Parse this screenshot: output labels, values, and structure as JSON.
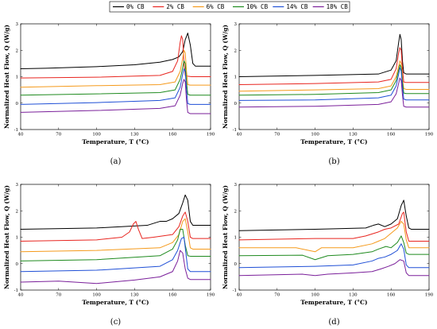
{
  "legend": [
    {
      "label": "0% CB",
      "color": "#000000"
    },
    {
      "label": "2% CB",
      "color": "#e8251f"
    },
    {
      "label": "6% CB",
      "color": "#f59a1b"
    },
    {
      "label": "10% CB",
      "color": "#1e8a1e"
    },
    {
      "label": "14% CB",
      "color": "#1f4fd6"
    },
    {
      "label": "18% CB",
      "color": "#7a1f9a"
    }
  ],
  "chart_data": [
    {
      "type": "line",
      "panel_label": "(a)",
      "xlabel": "Temperature, T (°C)",
      "ylabel": "Normalized Heat Flow, Q (W/g)",
      "xlim": [
        40,
        190
      ],
      "ylim": [
        -1,
        3
      ],
      "xticks": [
        40,
        70,
        100,
        130,
        160,
        190
      ],
      "yticks": [
        -1,
        0,
        1,
        2,
        3
      ],
      "series": [
        {
          "name": "0% CB",
          "x": [
            40,
            60,
            100,
            130,
            150,
            160,
            165,
            168,
            170,
            172,
            174,
            176,
            178,
            190
          ],
          "y": [
            1.3,
            1.32,
            1.38,
            1.45,
            1.55,
            1.65,
            1.75,
            1.95,
            2.4,
            2.65,
            2.2,
            1.5,
            1.4,
            1.4
          ]
        },
        {
          "name": "2% CB",
          "x": [
            40,
            100,
            150,
            160,
            164,
            166,
            167,
            168,
            169,
            170,
            172,
            175,
            190
          ],
          "y": [
            0.95,
            0.98,
            1.05,
            1.2,
            1.6,
            2.3,
            2.55,
            2.4,
            1.5,
            1.05,
            1.02,
            1.0,
            1.0
          ]
        },
        {
          "name": "6% CB",
          "x": [
            40,
            100,
            150,
            162,
            166,
            168,
            169,
            170,
            171,
            172,
            174,
            176,
            190
          ],
          "y": [
            0.6,
            0.66,
            0.7,
            0.8,
            1.2,
            1.7,
            2.0,
            1.9,
            1.2,
            0.7,
            0.68,
            0.68,
            0.68
          ]
        },
        {
          "name": "10% CB",
          "x": [
            40,
            100,
            150,
            162,
            166,
            168,
            169,
            170,
            171,
            172,
            174,
            176,
            190
          ],
          "y": [
            0.3,
            0.35,
            0.4,
            0.5,
            0.9,
            1.35,
            1.6,
            1.5,
            0.8,
            0.33,
            0.3,
            0.3,
            0.3
          ]
        },
        {
          "name": "14% CB",
          "x": [
            40,
            100,
            150,
            162,
            166,
            168,
            169,
            170,
            171,
            172,
            174,
            176,
            190
          ],
          "y": [
            -0.05,
            0.02,
            0.1,
            0.2,
            0.6,
            1.1,
            1.3,
            1.2,
            0.5,
            -0.02,
            -0.05,
            -0.05,
            -0.05
          ]
        },
        {
          "name": "18% CB",
          "x": [
            40,
            100,
            150,
            162,
            166,
            168,
            169,
            170,
            171,
            172,
            174,
            176,
            190
          ],
          "y": [
            -0.35,
            -0.28,
            -0.2,
            -0.1,
            0.3,
            0.75,
            0.9,
            0.8,
            0.1,
            -0.35,
            -0.4,
            -0.4,
            -0.4
          ]
        }
      ]
    },
    {
      "type": "line",
      "panel_label": "(b)",
      "xlabel": "Temperature, T (°C)",
      "ylabel": "Normalized Heat Flow, Q (W/g)",
      "xlim": [
        40,
        190
      ],
      "ylim": [
        -1,
        3
      ],
      "xticks": [
        40,
        70,
        100,
        130,
        160,
        190
      ],
      "yticks": [
        -1,
        0,
        1,
        2,
        3
      ],
      "series": [
        {
          "name": "0% CB",
          "x": [
            40,
            100,
            150,
            160,
            164,
            166,
            167,
            168,
            169,
            170,
            172,
            175,
            190
          ],
          "y": [
            1.0,
            1.05,
            1.1,
            1.25,
            1.6,
            2.3,
            2.6,
            2.4,
            1.6,
            1.15,
            1.1,
            1.1,
            1.1
          ]
        },
        {
          "name": "2% CB",
          "x": [
            40,
            100,
            150,
            160,
            164,
            166,
            167,
            168,
            169,
            170,
            172,
            175,
            190
          ],
          "y": [
            0.7,
            0.74,
            0.8,
            0.9,
            1.3,
            1.9,
            2.1,
            2.0,
            1.3,
            0.8,
            0.78,
            0.78,
            0.78
          ]
        },
        {
          "name": "6% CB",
          "x": [
            40,
            100,
            150,
            160,
            164,
            166,
            167,
            168,
            169,
            170,
            172,
            175,
            190
          ],
          "y": [
            0.45,
            0.5,
            0.55,
            0.65,
            1.0,
            1.4,
            1.6,
            1.5,
            0.9,
            0.55,
            0.52,
            0.52,
            0.52
          ]
        },
        {
          "name": "10% CB",
          "x": [
            40,
            100,
            150,
            160,
            164,
            166,
            167,
            168,
            169,
            170,
            172,
            175,
            190
          ],
          "y": [
            0.3,
            0.33,
            0.4,
            0.5,
            0.85,
            1.25,
            1.45,
            1.35,
            0.8,
            0.38,
            0.36,
            0.36,
            0.36
          ]
        },
        {
          "name": "14% CB",
          "x": [
            40,
            100,
            150,
            160,
            164,
            166,
            167,
            168,
            169,
            170,
            172,
            175,
            190
          ],
          "y": [
            0.1,
            0.12,
            0.2,
            0.3,
            0.65,
            1.1,
            1.35,
            1.2,
            0.6,
            0.15,
            0.12,
            0.12,
            0.12
          ]
        },
        {
          "name": "18% CB",
          "x": [
            40,
            100,
            150,
            160,
            164,
            166,
            167,
            168,
            169,
            170,
            172,
            175,
            190
          ],
          "y": [
            -0.15,
            -0.12,
            -0.05,
            0.05,
            0.35,
            0.75,
            0.95,
            0.85,
            0.3,
            -0.12,
            -0.15,
            -0.15,
            -0.15
          ]
        }
      ]
    },
    {
      "type": "line",
      "panel_label": "(c)",
      "xlabel": "Temperature, T (°C)",
      "ylabel": "Normalized Heat Flow, Q (W/g)",
      "xlim": [
        40,
        190
      ],
      "ylim": [
        -1,
        3
      ],
      "xticks": [
        40,
        70,
        100,
        130,
        160,
        190
      ],
      "yticks": [
        -1,
        0,
        1,
        2,
        3
      ],
      "series": [
        {
          "name": "0% CB",
          "x": [
            40,
            100,
            140,
            150,
            155,
            160,
            165,
            168,
            170,
            172,
            174,
            176,
            190
          ],
          "y": [
            1.3,
            1.35,
            1.45,
            1.6,
            1.6,
            1.7,
            1.9,
            2.3,
            2.6,
            2.4,
            1.6,
            1.45,
            1.45
          ]
        },
        {
          "name": "2% CB",
          "x": [
            40,
            100,
            120,
            126,
            129,
            131,
            133,
            136,
            145,
            160,
            165,
            168,
            170,
            172,
            174,
            176,
            190
          ],
          "y": [
            0.85,
            0.9,
            1.0,
            1.2,
            1.5,
            1.6,
            1.3,
            0.95,
            1.0,
            1.1,
            1.4,
            1.8,
            1.95,
            1.6,
            1.0,
            0.95,
            0.95
          ]
        },
        {
          "name": "6% CB",
          "x": [
            40,
            100,
            150,
            160,
            165,
            168,
            170,
            172,
            174,
            176,
            190
          ],
          "y": [
            0.45,
            0.5,
            0.6,
            0.8,
            1.1,
            1.6,
            1.7,
            1.2,
            0.6,
            0.55,
            0.55
          ]
        },
        {
          "name": "10% CB",
          "x": [
            40,
            100,
            150,
            160,
            164,
            166,
            168,
            170,
            172,
            174,
            190
          ],
          "y": [
            0.1,
            0.15,
            0.3,
            0.55,
            0.9,
            1.3,
            1.3,
            0.7,
            0.3,
            0.28,
            0.28
          ]
        },
        {
          "name": "14% CB",
          "x": [
            40,
            100,
            150,
            160,
            164,
            167,
            169,
            170,
            172,
            174,
            190
          ],
          "y": [
            -0.3,
            -0.25,
            -0.1,
            0.15,
            0.5,
            0.95,
            1.0,
            0.6,
            -0.2,
            -0.3,
            -0.3
          ]
        },
        {
          "name": "18% CB",
          "x": [
            40,
            70,
            100,
            130,
            150,
            160,
            164,
            166,
            168,
            170,
            172,
            174,
            190
          ],
          "y": [
            -0.7,
            -0.66,
            -0.75,
            -0.62,
            -0.5,
            -0.3,
            0.1,
            0.5,
            0.4,
            -0.2,
            -0.55,
            -0.6,
            -0.6
          ]
        }
      ]
    },
    {
      "type": "line",
      "panel_label": "(d)",
      "xlabel": "Temperature, T (°C)",
      "ylabel": "Normalized Heat Flow, Q (W/g)",
      "xlim": [
        40,
        190
      ],
      "ylim": [
        -1,
        3
      ],
      "xticks": [
        40,
        70,
        100,
        130,
        160,
        190
      ],
      "yticks": [
        -1,
        0,
        1,
        2,
        3
      ],
      "series": [
        {
          "name": "0% CB",
          "x": [
            40,
            100,
            140,
            146,
            150,
            155,
            160,
            165,
            168,
            170,
            172,
            174,
            176,
            190
          ],
          "y": [
            1.25,
            1.3,
            1.35,
            1.45,
            1.5,
            1.4,
            1.5,
            1.7,
            2.2,
            2.4,
            1.8,
            1.35,
            1.3,
            1.3
          ]
        },
        {
          "name": "2% CB",
          "x": [
            40,
            100,
            130,
            140,
            150,
            155,
            160,
            166,
            169,
            170,
            172,
            174,
            190
          ],
          "y": [
            0.9,
            0.95,
            0.95,
            1.05,
            1.2,
            1.3,
            1.35,
            1.5,
            1.9,
            1.95,
            1.2,
            0.85,
            0.85
          ]
        },
        {
          "name": "6% CB",
          "x": [
            40,
            85,
            95,
            100,
            105,
            115,
            130,
            145,
            150,
            155,
            160,
            165,
            168,
            170,
            172,
            174,
            190
          ],
          "y": [
            0.6,
            0.6,
            0.5,
            0.45,
            0.6,
            0.6,
            0.6,
            0.75,
            0.85,
            0.95,
            1.15,
            1.35,
            1.6,
            1.5,
            0.9,
            0.6,
            0.6
          ]
        },
        {
          "name": "10% CB",
          "x": [
            40,
            90,
            100,
            110,
            130,
            145,
            150,
            156,
            160,
            165,
            168,
            170,
            172,
            174,
            190
          ],
          "y": [
            0.3,
            0.32,
            0.15,
            0.3,
            0.35,
            0.45,
            0.55,
            0.65,
            0.6,
            0.8,
            1.05,
            0.8,
            0.4,
            0.35,
            0.35
          ]
        },
        {
          "name": "14% CB",
          "x": [
            40,
            100,
            130,
            145,
            150,
            155,
            160,
            165,
            168,
            170,
            172,
            174,
            190
          ],
          "y": [
            -0.15,
            -0.1,
            -0.05,
            0.1,
            0.2,
            0.25,
            0.35,
            0.5,
            0.75,
            0.55,
            -0.05,
            -0.15,
            -0.15
          ]
        },
        {
          "name": "18% CB",
          "x": [
            40,
            90,
            100,
            110,
            130,
            145,
            152,
            158,
            163,
            167,
            170,
            172,
            174,
            190
          ],
          "y": [
            -0.45,
            -0.4,
            -0.45,
            -0.4,
            -0.35,
            -0.3,
            -0.2,
            -0.1,
            0.0,
            0.15,
            0.1,
            -0.35,
            -0.45,
            -0.45
          ]
        }
      ]
    }
  ]
}
